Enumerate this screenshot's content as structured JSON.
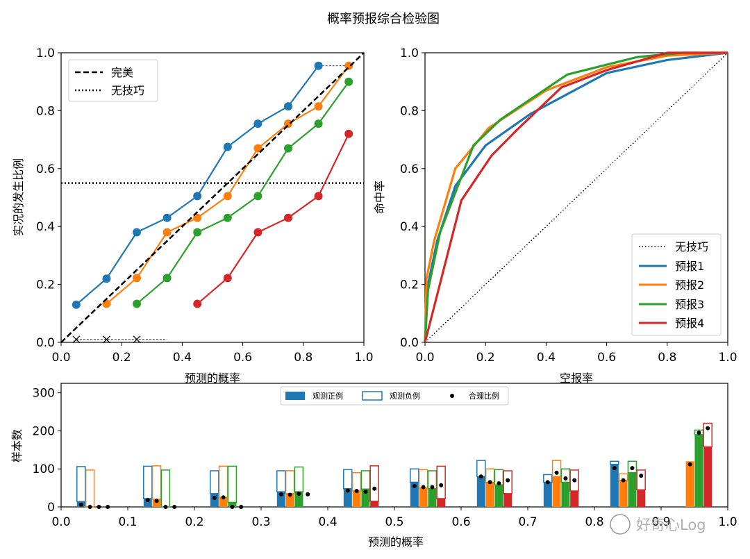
{
  "figure": {
    "title": "概率预报综合检验图",
    "watermark": "好奇心Log"
  },
  "colors": {
    "c1": "#1f77b4",
    "c2": "#ff7f0e",
    "c3": "#2ca02c",
    "c4": "#d62728"
  },
  "chart_data": [
    {
      "type": "line",
      "panel": "reliability",
      "xlabel": "预测的概率",
      "ylabel": "实况的发生比例",
      "xlim": [
        0,
        1
      ],
      "ylim": [
        0,
        1
      ],
      "xticks": [
        "0.0",
        "0.2",
        "0.4",
        "0.6",
        "0.8",
        "1.0"
      ],
      "yticks": [
        "0.0",
        "0.2",
        "0.4",
        "0.6",
        "0.8",
        "1.0"
      ],
      "legend": {
        "position": "upper-left",
        "entries": [
          "完美",
          "无技巧"
        ]
      },
      "perfect": [
        [
          0,
          0
        ],
        [
          1,
          1
        ]
      ],
      "no_skill_y": 0.55,
      "series": [
        {
          "points": [
            [
              0.05,
              0.13
            ],
            [
              0.15,
              0.22
            ],
            [
              0.25,
              0.38
            ],
            [
              0.35,
              0.43
            ],
            [
              0.45,
              0.505
            ],
            [
              0.55,
              0.675
            ],
            [
              0.65,
              0.755
            ],
            [
              0.75,
              0.815
            ],
            [
              0.85,
              0.955
            ]
          ]
        },
        {
          "points": [
            [
              0.15,
              0.133
            ],
            [
              0.25,
              0.222
            ],
            [
              0.35,
              0.38
            ],
            [
              0.45,
              0.43
            ],
            [
              0.55,
              0.505
            ],
            [
              0.65,
              0.67
            ],
            [
              0.75,
              0.755
            ],
            [
              0.85,
              0.815
            ],
            [
              0.95,
              0.955
            ]
          ]
        },
        {
          "points": [
            [
              0.25,
              0.133
            ],
            [
              0.35,
              0.222
            ],
            [
              0.45,
              0.38
            ],
            [
              0.55,
              0.43
            ],
            [
              0.65,
              0.505
            ],
            [
              0.75,
              0.67
            ],
            [
              0.85,
              0.755
            ],
            [
              0.95,
              0.9
            ]
          ]
        },
        {
          "points": [
            [
              0.45,
              0.133
            ],
            [
              0.55,
              0.222
            ],
            [
              0.65,
              0.38
            ],
            [
              0.75,
              0.43
            ],
            [
              0.85,
              0.505
            ],
            [
              0.95,
              0.72
            ]
          ]
        }
      ],
      "no_data_markers": [
        [
          0.05,
          0.01
        ],
        [
          0.15,
          0.01
        ],
        [
          0.25,
          0.01
        ]
      ],
      "gap_lines": [
        {
          "from": [
            0.05,
            0.01
          ],
          "to": [
            0.35,
            0.01
          ],
          "series": 3
        },
        {
          "from": [
            0.85,
            0.955
          ],
          "to": [
            0.95,
            0.955
          ],
          "series": 0
        }
      ]
    },
    {
      "type": "line",
      "panel": "roc",
      "xlabel": "空报率",
      "ylabel": "命中率",
      "xlim": [
        0,
        1
      ],
      "ylim": [
        0,
        1
      ],
      "xticks": [
        "0.0",
        "0.2",
        "0.4",
        "0.6",
        "0.8",
        "1.0"
      ],
      "yticks": [
        "0.0",
        "0.2",
        "0.4",
        "0.6",
        "0.8",
        "1.0"
      ],
      "legend": {
        "position": "lower-right",
        "entries": [
          "无技巧",
          "预报1",
          "预报2",
          "预报3",
          "预报4"
        ]
      },
      "no_skill": [
        [
          0,
          0
        ],
        [
          1,
          1
        ]
      ],
      "series": [
        {
          "name": "预报1",
          "points": [
            [
              0,
              0
            ],
            [
              0.01,
              0.2
            ],
            [
              0.04,
              0.35
            ],
            [
              0.1,
              0.54
            ],
            [
              0.2,
              0.68
            ],
            [
              0.35,
              0.79
            ],
            [
              0.6,
              0.93
            ],
            [
              0.8,
              0.975
            ],
            [
              1.0,
              1.0
            ]
          ]
        },
        {
          "name": "预报2",
          "points": [
            [
              0,
              0
            ],
            [
              0.005,
              0.22
            ],
            [
              0.03,
              0.35
            ],
            [
              0.1,
              0.6
            ],
            [
              0.21,
              0.74
            ],
            [
              0.4,
              0.87
            ],
            [
              0.6,
              0.95
            ],
            [
              0.8,
              0.99
            ],
            [
              1.0,
              1.0
            ]
          ]
        },
        {
          "name": "预报3",
          "points": [
            [
              0,
              0
            ],
            [
              0.01,
              0.18
            ],
            [
              0.05,
              0.38
            ],
            [
              0.16,
              0.68
            ],
            [
              0.25,
              0.77
            ],
            [
              0.47,
              0.925
            ],
            [
              0.7,
              0.985
            ],
            [
              0.85,
              1.0
            ],
            [
              1.0,
              1.0
            ]
          ]
        },
        {
          "name": "预报4",
          "points": [
            [
              0,
              0
            ],
            [
              0.12,
              0.49
            ],
            [
              0.22,
              0.645
            ],
            [
              0.3,
              0.73
            ],
            [
              0.45,
              0.88
            ],
            [
              0.6,
              0.94
            ],
            [
              0.8,
              1.0
            ],
            [
              1.0,
              1.0
            ]
          ]
        }
      ]
    },
    {
      "type": "bar",
      "panel": "histogram",
      "xlabel": "预测的概率",
      "ylabel": "样本数",
      "xlim": [
        0,
        1
      ],
      "ylim": [
        0,
        325
      ],
      "xticks": [
        "0.0",
        "0.1",
        "0.2",
        "0.3",
        "0.4",
        "0.5",
        "0.6",
        "0.7",
        "0.8",
        "0.9",
        "1.0"
      ],
      "yticks": [
        "0",
        "100",
        "200",
        "300"
      ],
      "legend": {
        "position": "upper-center",
        "entries": [
          "观测正例",
          "观测负例",
          "合理比例"
        ]
      },
      "bin_centers": [
        0.05,
        0.15,
        0.25,
        0.35,
        0.45,
        0.55,
        0.65,
        0.75,
        0.85,
        0.95
      ],
      "series_offsets": [
        -0.02,
        -0.0067,
        0.0067,
        0.02
      ],
      "positives": [
        [
          14,
          22,
          35,
          40,
          48,
          65,
          80,
          65,
          112,
          0
        ],
        [
          0,
          20,
          25,
          35,
          42,
          50,
          65,
          80,
          70,
          120
        ],
        [
          0,
          0,
          12,
          40,
          47,
          48,
          58,
          65,
          90,
          190
        ],
        [
          0,
          0,
          0,
          0,
          15,
          22,
          35,
          42,
          45,
          158
        ]
      ],
      "negatives": [
        [
          92,
          85,
          60,
          55,
          50,
          35,
          42,
          20,
          8,
          0
        ],
        [
          97,
          88,
          82,
          60,
          48,
          48,
          35,
          42,
          17,
          0
        ],
        [
          0,
          97,
          95,
          65,
          48,
          47,
          40,
          35,
          30,
          12
        ],
        [
          0,
          0,
          0,
          0,
          93,
          85,
          60,
          55,
          52,
          62
        ]
      ],
      "reasonable": [
        [
          6,
          18,
          24,
          33,
          43,
          55,
          80,
          65,
          102,
          null
        ],
        [
          0,
          16,
          25,
          32,
          42,
          52,
          65,
          90,
          70,
          112
        ],
        [
          0,
          0,
          0,
          35,
          40,
          52,
          62,
          75,
          102,
          195
        ],
        [
          0,
          0,
          0,
          33,
          48,
          57,
          70,
          70,
          82,
          207
        ]
      ]
    }
  ]
}
